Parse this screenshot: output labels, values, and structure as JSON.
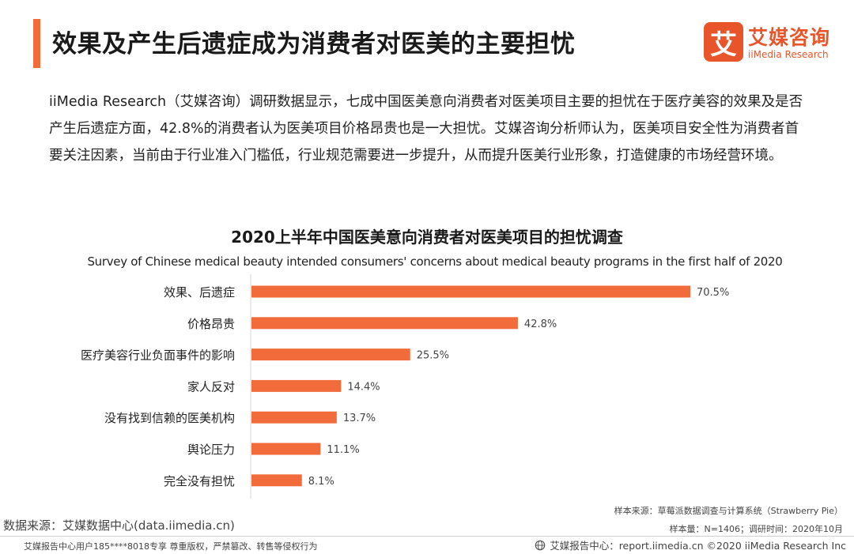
{
  "header": {
    "title": "效果及产生后遗症成为消费者对医美的主要担忧",
    "accent_color": "#f26b3a"
  },
  "logo": {
    "mark": "艾",
    "name_cn": "艾媒咨询",
    "name_en": "iiMedia Research",
    "color": "#e8552a"
  },
  "intro": {
    "text": "iiMedia Research（艾媒咨询）调研数据显示，七成中国医美意向消费者对医美项目主要的担忧在于医疗美容的效果及是否产生后遗症方面，42.8%的消费者认为医美项目价格昂贵也是一大担忧。艾媒咨询分析师认为，医美项目安全性为消费者首要关注因素，当前由于行业准入门槛低，行业规范需要进一步提升，从而提升医美行业形象，打造健康的市场经营环境。"
  },
  "chart_data": {
    "type": "bar",
    "orientation": "horizontal",
    "title": "2020上半年中国医美意向消费者对医美项目的担忧调查",
    "subtitle": "Survey of  Chinese medical beauty intended consumers' concerns about medical beauty programs in the first half of 2020",
    "categories": [
      "效果、后遗症",
      "价格昂贵",
      "医疗美容行业负面事件的影响",
      "家人反对",
      "没有找到信赖的医美机构",
      "舆论压力",
      "完全没有担忧"
    ],
    "values": [
      70.5,
      42.8,
      25.5,
      14.4,
      13.7,
      11.1,
      8.1
    ],
    "value_labels": [
      "70.5%",
      "42.8%",
      "25.5%",
      "14.4%",
      "13.7%",
      "11.1%",
      "8.1%"
    ],
    "xlim": [
      0,
      70.5
    ],
    "bar_color": "#f26b3a"
  },
  "sources": {
    "sample_source": "样本来源：草莓派数据调查与计算系统（Strawberry Pie）",
    "sample_size": "样本量：N=1406；调研时间：2020年10月",
    "data_source": "数据来源：艾媒数据中心(data.iimedia.cn)"
  },
  "footer": {
    "left": "艾媒报告中心用户185****8018专享 尊重版权，严禁篡改、转售等侵权行为",
    "right": "艾媒报告中心：report.iimedia.cn  ©2020  iiMedia Research  Inc",
    "globe_icon": "globe-icon"
  }
}
